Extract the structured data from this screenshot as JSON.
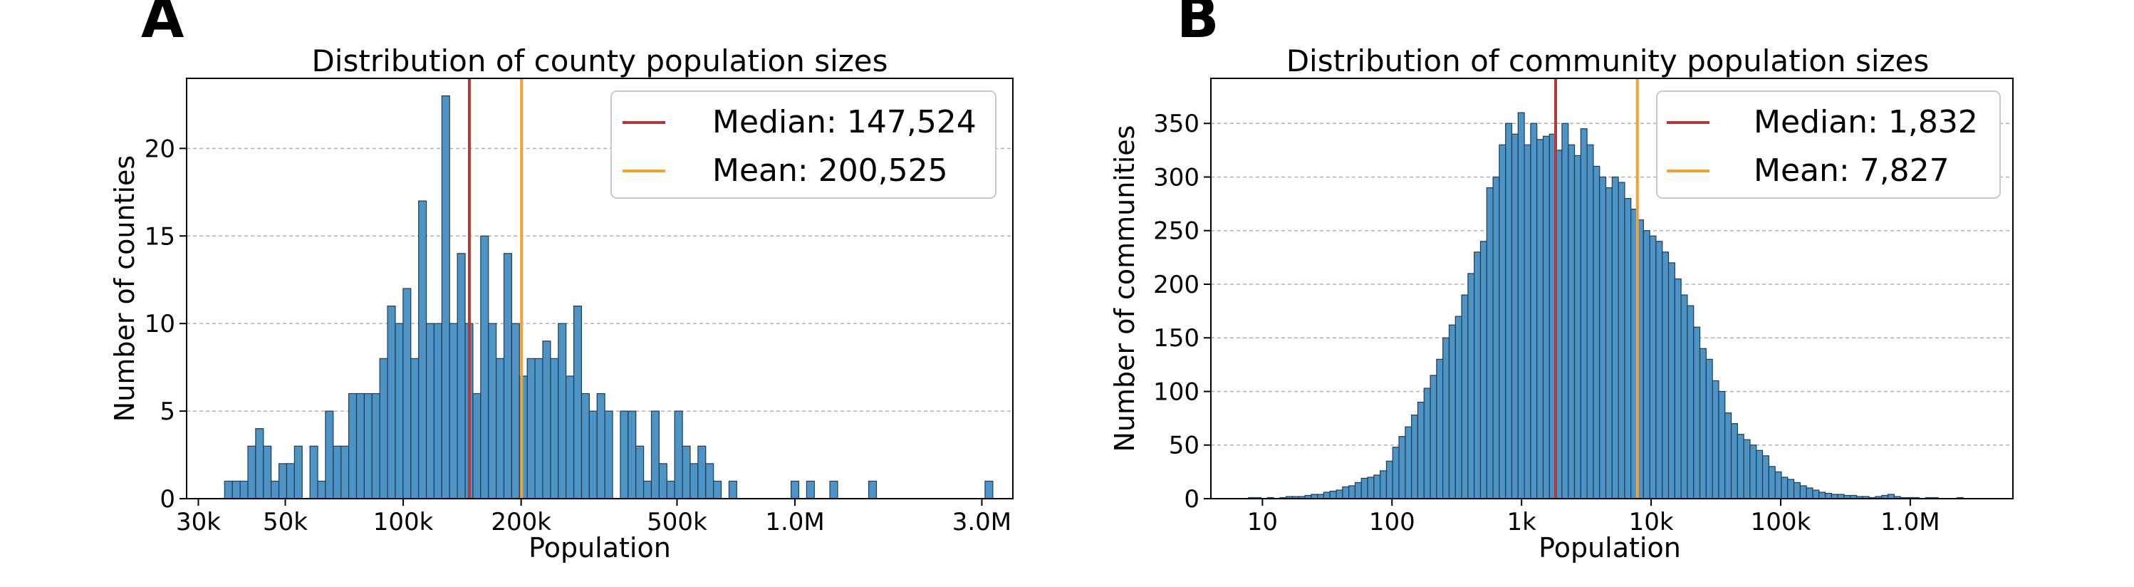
{
  "chart_data": [
    {
      "panel": "A",
      "type": "bar",
      "title": "Distribution of county population sizes",
      "xlabel": "Population",
      "ylabel": "Number of counties",
      "x_scale": "log",
      "xlim": [
        28000,
        3600000
      ],
      "ylim": [
        0,
        24
      ],
      "x_ticks": [
        {
          "value": 30000,
          "label": "30k"
        },
        {
          "value": 50000,
          "label": "50k"
        },
        {
          "value": 100000,
          "label": "100k"
        },
        {
          "value": 200000,
          "label": "200k"
        },
        {
          "value": 500000,
          "label": "500k"
        },
        {
          "value": 1000000,
          "label": "1.0M"
        },
        {
          "value": 3000000,
          "label": "3.0M"
        }
      ],
      "y_ticks": [
        {
          "value": 0,
          "label": "0"
        },
        {
          "value": 5,
          "label": "5"
        },
        {
          "value": 10,
          "label": "10"
        },
        {
          "value": 15,
          "label": "15"
        },
        {
          "value": 20,
          "label": "20"
        }
      ],
      "grid": "horizontal dashed",
      "bin_range": [
        35000,
        3200000
      ],
      "counts": [
        1,
        1,
        1,
        3,
        4,
        3,
        1,
        2,
        2,
        3,
        0,
        3,
        1,
        5,
        3,
        3,
        6,
        6,
        6,
        6,
        8,
        11,
        10,
        12,
        8,
        17,
        10,
        10,
        23,
        10,
        14,
        10,
        6,
        15,
        10,
        8,
        14,
        10,
        7,
        8,
        8,
        9,
        8,
        10,
        7,
        11,
        6,
        5,
        6,
        5,
        0,
        5,
        5,
        3,
        1,
        5,
        2,
        1,
        5,
        3,
        2,
        3,
        2,
        1,
        0,
        1,
        0,
        0,
        0,
        0,
        0,
        0,
        0,
        1,
        0,
        1,
        0,
        0,
        1,
        0,
        0,
        0,
        0,
        1,
        0,
        0,
        0,
        0,
        0,
        0,
        0,
        0,
        0,
        0,
        0,
        0,
        0,
        0,
        1
      ],
      "bar_color": "#4d93c4",
      "lines": [
        {
          "label": "Median: 147,524",
          "value": 147524,
          "color": "#b03a3a"
        },
        {
          "label": "Mean: 200,525",
          "value": 200525,
          "color": "#f5a033"
        }
      ],
      "legend": "top-right"
    },
    {
      "panel": "B",
      "type": "bar",
      "title": "Distribution of community population sizes",
      "xlabel": "Population",
      "ylabel": "Number of communities",
      "x_scale": "log",
      "xlim": [
        4,
        6200000
      ],
      "ylim": [
        0,
        392
      ],
      "x_ticks": [
        {
          "value": 10,
          "label": "10"
        },
        {
          "value": 100,
          "label": "100"
        },
        {
          "value": 1000,
          "label": "1k"
        },
        {
          "value": 10000,
          "label": "10k"
        },
        {
          "value": 100000,
          "label": "100k"
        },
        {
          "value": 1000000,
          "label": "1.0M"
        }
      ],
      "y_ticks": [
        {
          "value": 0,
          "label": "0"
        },
        {
          "value": 50,
          "label": "50"
        },
        {
          "value": 100,
          "label": "100"
        },
        {
          "value": 150,
          "label": "150"
        },
        {
          "value": 200,
          "label": "200"
        },
        {
          "value": 250,
          "label": "250"
        },
        {
          "value": 300,
          "label": "300"
        },
        {
          "value": 350,
          "label": "350"
        }
      ],
      "grid": "horizontal dashed",
      "bin_range": [
        5,
        5000000
      ],
      "counts": [
        0,
        0,
        0,
        0,
        1,
        1,
        0,
        1,
        0,
        1,
        2,
        2,
        2,
        3,
        4,
        4,
        6,
        7,
        8,
        11,
        12,
        15,
        19,
        20,
        22,
        26,
        35,
        48,
        58,
        67,
        78,
        90,
        103,
        115,
        130,
        150,
        162,
        170,
        190,
        210,
        230,
        240,
        290,
        300,
        330,
        350,
        340,
        360,
        330,
        350,
        335,
        338,
        340,
        325,
        350,
        330,
        320,
        345,
        330,
        310,
        300,
        290,
        300,
        295,
        280,
        270,
        260,
        250,
        245,
        240,
        230,
        220,
        205,
        190,
        180,
        160,
        140,
        130,
        110,
        100,
        80,
        70,
        60,
        55,
        50,
        45,
        40,
        30,
        25,
        20,
        18,
        15,
        12,
        10,
        8,
        6,
        5,
        4,
        4,
        3,
        3,
        2,
        2,
        1,
        2,
        3,
        4,
        2,
        1,
        1,
        1,
        0,
        1,
        1,
        0,
        0,
        0,
        1,
        0,
        0,
        0,
        0,
        0,
        0
      ],
      "bar_color": "#4d93c4",
      "lines": [
        {
          "label": "Median: 1,832",
          "value": 1832,
          "color": "#b03a3a"
        },
        {
          "label": "Mean: 7,827",
          "value": 7827,
          "color": "#f5a033"
        }
      ],
      "legend": "top-right"
    }
  ]
}
